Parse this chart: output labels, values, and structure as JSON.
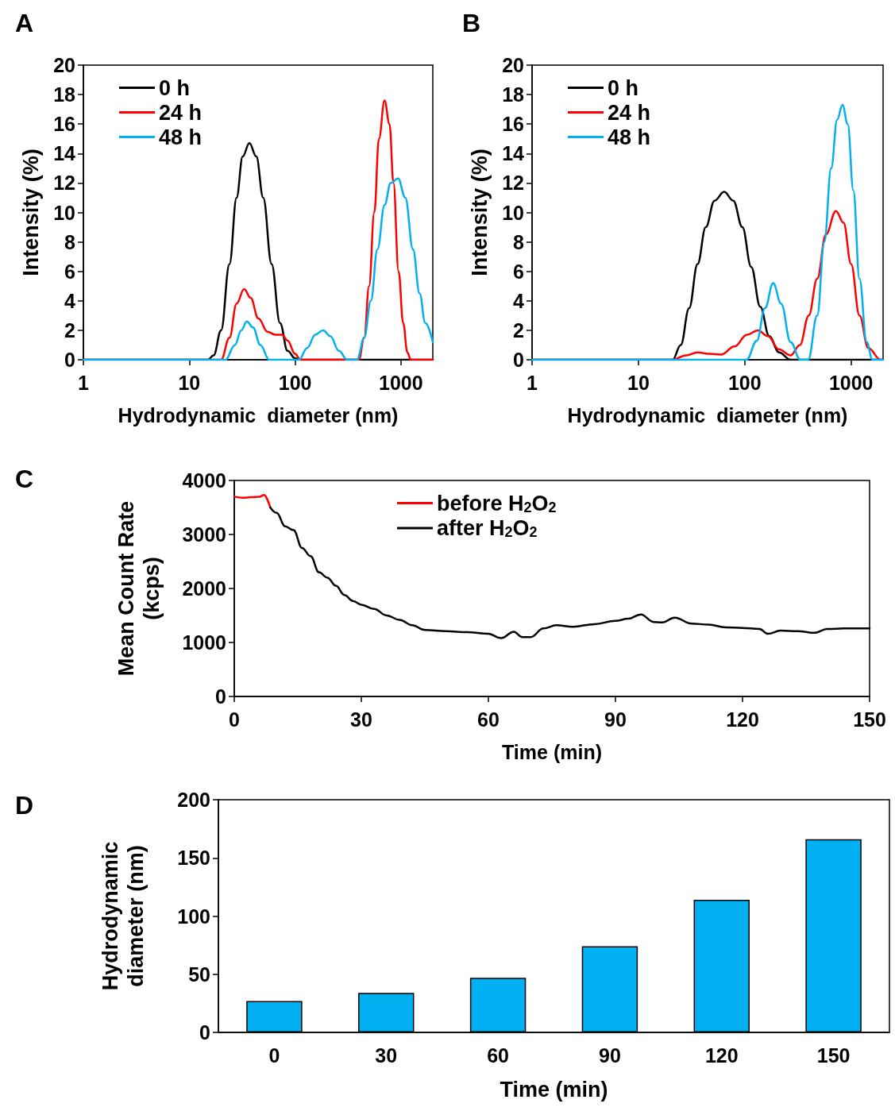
{
  "chart_data": [
    {
      "type": "line",
      "title": "A",
      "xlabel": "Hydrodynamic  diameter (nm)",
      "ylabel": "Intensity (%)",
      "log": "x",
      "xlim": [
        1,
        2000
      ],
      "xticks": [
        1,
        10,
        100,
        1000
      ],
      "ylim": [
        0,
        20
      ],
      "yticks": [
        0,
        2,
        4,
        6,
        8,
        10,
        12,
        14,
        16,
        18,
        20
      ],
      "legend": "top left",
      "series": [
        {
          "name": "0 h",
          "color": "#000000",
          "x": [
            1,
            15,
            17,
            20,
            24,
            28,
            32,
            37,
            43,
            50,
            60,
            72,
            85,
            100,
            115,
            2000
          ],
          "values": [
            0,
            0,
            0.3,
            2,
            6.5,
            11,
            13.8,
            14.7,
            13.8,
            11,
            6.5,
            2.5,
            0.6,
            0.1,
            0,
            0
          ]
        },
        {
          "name": "24 h",
          "color": "#ff0000",
          "x": [
            1,
            20,
            24,
            28,
            33,
            38,
            45,
            55,
            65,
            75,
            85,
            100,
            112,
            400,
            450,
            500,
            560,
            620,
            700,
            780,
            850,
            950,
            1050,
            1150,
            1240,
            2000
          ],
          "values": [
            0,
            0,
            1.5,
            3.8,
            4.8,
            4.2,
            2.8,
            1.9,
            1.7,
            1.7,
            1.3,
            0.4,
            0,
            0,
            1.5,
            5,
            10,
            15,
            17.6,
            16,
            12,
            6,
            2.5,
            0.5,
            0,
            0
          ]
        },
        {
          "name": "48 h",
          "color": "#00b0f0",
          "x": [
            1,
            22,
            27,
            31,
            35,
            40,
            47,
            57,
            109,
            130,
            155,
            184,
            215,
            260,
            310,
            385,
            450,
            520,
            600,
            700,
            800,
            940,
            1100,
            1300,
            1500,
            1700,
            2000
          ],
          "values": [
            0,
            0,
            1,
            2,
            2.6,
            2.2,
            1,
            0,
            0,
            0.8,
            1.7,
            2,
            1.6,
            0.6,
            0,
            0,
            1.5,
            4,
            7.5,
            10.5,
            12,
            12.3,
            11,
            7.5,
            4.5,
            2.5,
            1.2
          ]
        }
      ]
    },
    {
      "type": "line",
      "title": "B",
      "xlabel": "Hydrodynamic  diameter (nm)",
      "ylabel": "Intensity (%)",
      "log": "x",
      "xlim": [
        1,
        2000
      ],
      "xticks": [
        1,
        10,
        100,
        1000
      ],
      "ylim": [
        0,
        20
      ],
      "yticks": [
        0,
        2,
        4,
        6,
        8,
        10,
        12,
        14,
        16,
        18,
        20
      ],
      "legend": "top left",
      "series": [
        {
          "name": "0 h",
          "color": "#000000",
          "x": [
            1,
            21,
            25,
            30,
            36,
            43,
            52,
            64,
            78,
            95,
            115,
            140,
            170,
            210,
            270,
            2000
          ],
          "values": [
            0,
            0,
            1,
            3.5,
            6.5,
            9,
            10.8,
            11.4,
            10.8,
            9,
            6.3,
            3.6,
            1.6,
            0.5,
            0,
            0
          ]
        },
        {
          "name": "24 h",
          "color": "#ff0000",
          "x": [
            1,
            21,
            28,
            36,
            47,
            60,
            80,
            105,
            133,
            165,
            210,
            270,
            330,
            400,
            480,
            580,
            720,
            850,
            1000,
            1200,
            1450,
            1900,
            2000
          ],
          "values": [
            0,
            0,
            0.3,
            0.5,
            0.4,
            0.35,
            0.9,
            1.7,
            2,
            1.6,
            0.7,
            0.3,
            1,
            3,
            5.5,
            8.5,
            10.1,
            9.3,
            6.5,
            3,
            0.8,
            0,
            0
          ]
        },
        {
          "name": "48 h",
          "color": "#00b0f0",
          "x": [
            1,
            104,
            130,
            155,
            185,
            220,
            270,
            333,
            395,
            480,
            560,
            650,
            740,
            830,
            930,
            1050,
            1200,
            1400,
            1590,
            2000
          ],
          "values": [
            0,
            0,
            1.3,
            3.5,
            5.2,
            3.8,
            1.2,
            0,
            0,
            3,
            8,
            13,
            16.3,
            17.3,
            16,
            11.5,
            5.5,
            1.2,
            0,
            0
          ]
        }
      ]
    },
    {
      "type": "line",
      "title": "C",
      "xlabel": "Time (min)",
      "ylabel": "Mean Count Rate\n(kcps)",
      "xlim": [
        0,
        150
      ],
      "xticks": [
        0,
        30,
        60,
        90,
        120,
        150
      ],
      "ylim": [
        0,
        4000
      ],
      "yticks": [
        0,
        1000,
        2000,
        3000,
        4000
      ],
      "legend": "top",
      "series": [
        {
          "name": "before H$_{2}$O$_{2}$",
          "color": "#ff0000",
          "x": [
            0,
            2,
            4,
            6,
            7,
            8.5
          ],
          "values": [
            3700,
            3680,
            3690,
            3700,
            3730,
            3500
          ]
        },
        {
          "name": "after H$_{2}$O$_{2}$",
          "color": "#000000",
          "x": [
            8.5,
            10,
            12,
            14,
            16,
            18,
            20,
            22,
            24,
            26,
            28,
            30,
            33,
            36,
            39,
            42,
            45,
            50,
            55,
            60,
            63,
            66,
            68,
            70,
            73,
            76,
            80,
            85,
            90,
            93,
            96,
            99,
            101,
            104,
            108,
            112,
            116,
            120,
            124,
            126,
            129,
            133,
            137,
            140,
            144,
            150
          ],
          "values": [
            3500,
            3400,
            3150,
            3080,
            2750,
            2600,
            2300,
            2200,
            2050,
            1880,
            1770,
            1700,
            1620,
            1500,
            1420,
            1320,
            1230,
            1210,
            1190,
            1160,
            1080,
            1200,
            1100,
            1100,
            1260,
            1320,
            1290,
            1340,
            1400,
            1440,
            1520,
            1380,
            1370,
            1460,
            1350,
            1330,
            1280,
            1270,
            1250,
            1160,
            1220,
            1210,
            1180,
            1250,
            1260,
            1260
          ]
        }
      ]
    },
    {
      "type": "bar",
      "title": "D",
      "xlabel": "Time (min)",
      "ylabel": "Hydrodynamic\ndiameter (nm)",
      "categories": [
        "0",
        "30",
        "60",
        "90",
        "120",
        "150"
      ],
      "ylim": [
        0,
        200
      ],
      "yticks": [
        0,
        50,
        100,
        150,
        200
      ],
      "series": [
        {
          "color": "#00b0f0",
          "values": [
            27,
            34,
            47,
            74,
            114,
            166
          ]
        }
      ]
    }
  ]
}
